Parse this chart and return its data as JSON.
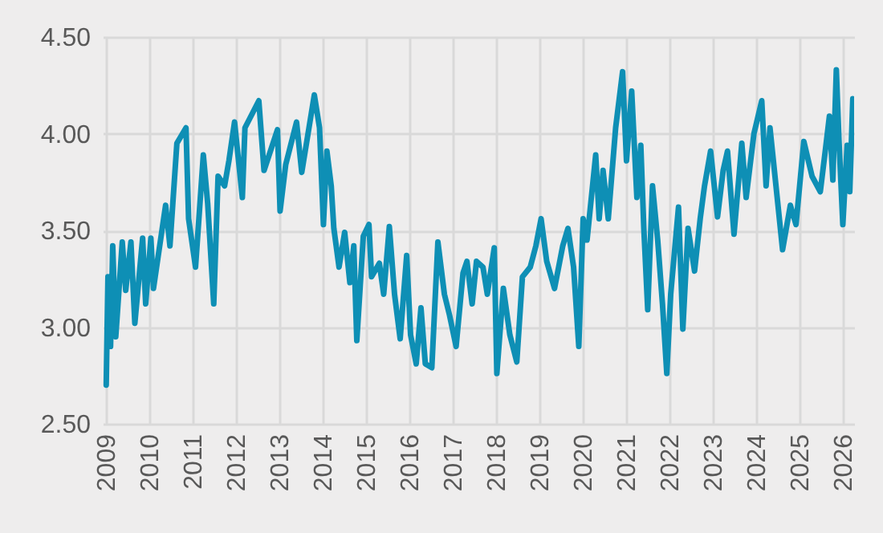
{
  "chart_data": {
    "type": "line",
    "xlim": [
      2008.92,
      2026.25
    ],
    "ylim": [
      2.5,
      4.5
    ],
    "xticks": [
      2009,
      2010,
      2011,
      2012,
      2013,
      2014,
      2015,
      2016,
      2017,
      2018,
      2019,
      2020,
      2021,
      2022,
      2023,
      2024,
      2025,
      2026
    ],
    "yticks": [
      {
        "value": 2.5,
        "label": "2.50"
      },
      {
        "value": 3,
        "label": "3.00"
      },
      {
        "value": 3.5,
        "label": "3.50"
      },
      {
        "value": 4,
        "label": "4.00"
      },
      {
        "value": 4.5,
        "label": "4.50"
      }
    ],
    "grid": true,
    "line_style": "solid",
    "series": [
      {
        "color": "#0e8fb5",
        "x": [
          2009.0,
          2009.04,
          2009.1,
          2009.15,
          2009.22,
          2009.37,
          2009.45,
          2009.57,
          2009.66,
          2009.84,
          2009.91,
          2010.03,
          2010.09,
          2010.37,
          2010.47,
          2010.63,
          2010.84,
          2010.9,
          2011.06,
          2011.24,
          2011.34,
          2011.48,
          2011.58,
          2011.73,
          2011.83,
          2011.96,
          2012.14,
          2012.2,
          2012.52,
          2012.64,
          2012.95,
          2013.01,
          2013.14,
          2013.39,
          2013.51,
          2013.8,
          2013.92,
          2014.01,
          2014.09,
          2014.19,
          2014.25,
          2014.37,
          2014.5,
          2014.62,
          2014.71,
          2014.78,
          2014.93,
          2015.06,
          2015.12,
          2015.3,
          2015.4,
          2015.53,
          2015.65,
          2015.78,
          2015.93,
          2016.02,
          2016.15,
          2016.26,
          2016.36,
          2016.51,
          2016.65,
          2016.8,
          2016.92,
          2017.07,
          2017.23,
          2017.32,
          2017.44,
          2017.54,
          2017.69,
          2017.79,
          2017.95,
          2018.01,
          2018.16,
          2018.31,
          2018.47,
          2018.6,
          2018.78,
          2018.91,
          2019.03,
          2019.16,
          2019.34,
          2019.53,
          2019.65,
          2019.78,
          2019.9,
          2020.0,
          2020.09,
          2020.29,
          2020.37,
          2020.46,
          2020.58,
          2020.75,
          2020.91,
          2021.0,
          2021.12,
          2021.24,
          2021.33,
          2021.4,
          2021.49,
          2021.6,
          2021.72,
          2021.83,
          2021.93,
          2022.02,
          2022.2,
          2022.3,
          2022.42,
          2022.57,
          2022.7,
          2022.8,
          2022.94,
          2023.1,
          2023.23,
          2023.33,
          2023.48,
          2023.66,
          2023.76,
          2023.94,
          2024.12,
          2024.22,
          2024.31,
          2024.6,
          2024.78,
          2024.91,
          2025.09,
          2025.28,
          2025.47,
          2025.59,
          2025.68,
          2025.76,
          2025.84,
          2025.9,
          2025.99,
          2026.09,
          2026.15,
          2026.22
        ],
        "values": [
          2.7,
          3.26,
          2.9,
          3.42,
          2.95,
          3.44,
          3.19,
          3.44,
          3.02,
          3.46,
          3.12,
          3.46,
          3.2,
          3.63,
          3.42,
          3.95,
          4.03,
          3.56,
          3.31,
          3.89,
          3.64,
          3.12,
          3.78,
          3.73,
          3.86,
          4.06,
          3.67,
          4.03,
          4.17,
          3.81,
          4.02,
          3.6,
          3.84,
          4.06,
          3.8,
          4.2,
          4.03,
          3.53,
          3.91,
          3.73,
          3.51,
          3.31,
          3.49,
          3.23,
          3.42,
          2.93,
          3.47,
          3.53,
          3.26,
          3.33,
          3.17,
          3.52,
          3.17,
          2.94,
          3.37,
          2.96,
          2.81,
          3.1,
          2.81,
          2.79,
          3.44,
          3.17,
          3.06,
          2.9,
          3.28,
          3.34,
          3.12,
          3.34,
          3.31,
          3.17,
          3.41,
          2.76,
          3.2,
          2.96,
          2.82,
          3.26,
          3.31,
          3.42,
          3.56,
          3.34,
          3.2,
          3.42,
          3.51,
          3.31,
          2.9,
          3.56,
          3.45,
          3.89,
          3.56,
          3.81,
          3.56,
          4.03,
          4.32,
          3.86,
          4.22,
          3.67,
          3.94,
          3.51,
          3.09,
          3.73,
          3.45,
          3.12,
          2.76,
          3.17,
          3.62,
          2.99,
          3.51,
          3.29,
          3.56,
          3.73,
          3.91,
          3.57,
          3.81,
          3.91,
          3.48,
          3.95,
          3.67,
          4.0,
          4.17,
          3.73,
          4.03,
          3.4,
          3.63,
          3.53,
          3.96,
          3.78,
          3.7,
          3.92,
          4.09,
          3.76,
          4.33,
          3.97,
          3.53,
          3.94,
          3.7,
          4.18
        ]
      }
    ]
  }
}
